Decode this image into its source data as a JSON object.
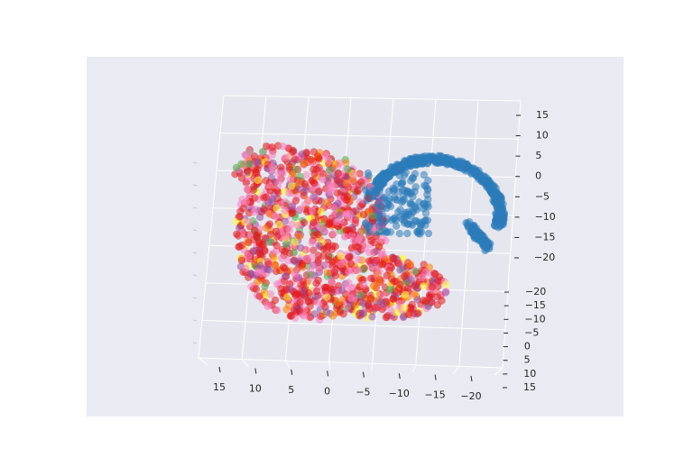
{
  "chart_data": {
    "type": "scatter",
    "projection": "3d",
    "title": "",
    "xlabel": "",
    "ylabel": "",
    "zlabel": "",
    "grid": true,
    "legend": "none",
    "axis_x": {
      "ticks": [
        15,
        10,
        5,
        0,
        -5,
        -10,
        -15,
        -20
      ],
      "tick_labels": [
        "15",
        "10",
        "5",
        "0",
        "−5",
        "−10",
        "−15",
        "−20"
      ]
    },
    "axis_y": {
      "ticks": [
        -20,
        -15,
        -10,
        -5,
        0,
        5,
        10,
        15
      ],
      "tick_labels": [
        "−20",
        "−15",
        "−10",
        "−5",
        "0",
        "5",
        "10",
        "15"
      ]
    },
    "axis_z": {
      "ticks": [
        15,
        10,
        5,
        0,
        -5,
        -10,
        -15,
        -20
      ],
      "tick_labels": [
        "15",
        "10",
        "5",
        "0",
        "−5",
        "−10",
        "−15",
        "−20"
      ]
    },
    "clusters": [
      {
        "color": "#2b7bba",
        "shape": "arc"
      },
      {
        "color": "#e41a1c",
        "shape": "blob"
      },
      {
        "color": "#f781bf",
        "shape": "blob"
      },
      {
        "color": "#984ea3",
        "shape": "blob"
      },
      {
        "color": "#ff7f00",
        "shape": "blob"
      },
      {
        "color": "#ffff33",
        "shape": "blob"
      },
      {
        "color": "#4daf4a",
        "shape": "blob"
      }
    ],
    "colors": {
      "axes_background": "#eaeaf2",
      "grid": "#ffffff"
    }
  }
}
